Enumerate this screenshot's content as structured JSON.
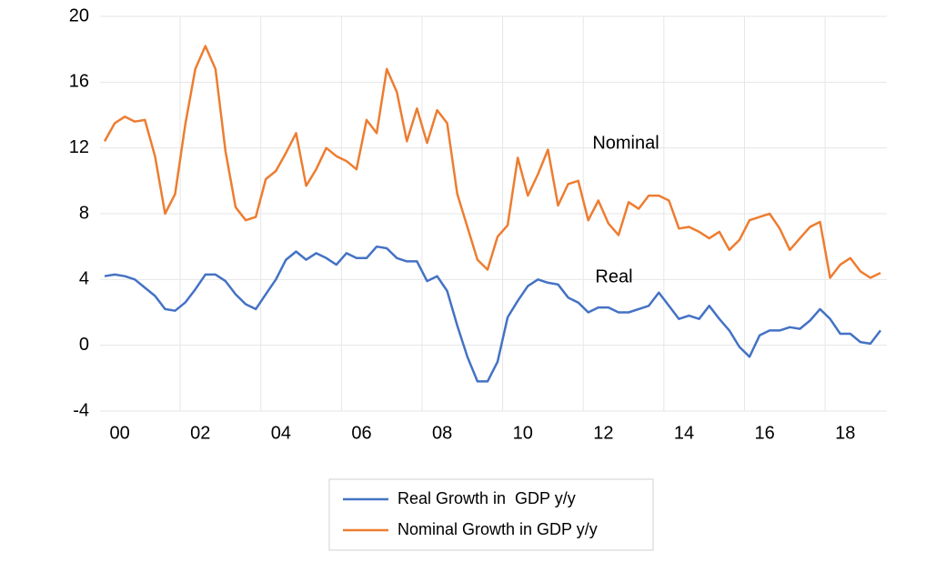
{
  "chart_data": {
    "type": "line",
    "categories": [
      "00",
      null,
      null,
      null,
      null,
      null,
      null,
      null,
      "02",
      null,
      null,
      null,
      null,
      null,
      null,
      null,
      "04",
      null,
      null,
      null,
      null,
      null,
      null,
      null,
      "06",
      null,
      null,
      null,
      null,
      null,
      null,
      null,
      "08",
      null,
      null,
      null,
      null,
      null,
      null,
      null,
      "10",
      null,
      null,
      null,
      null,
      null,
      null,
      null,
      "12",
      null,
      null,
      null,
      null,
      null,
      null,
      null,
      "14",
      null,
      null,
      null,
      null,
      null,
      null,
      null,
      "16",
      null,
      null,
      null,
      null,
      null,
      null,
      null,
      "18",
      null,
      null,
      null,
      null,
      null
    ],
    "series": [
      {
        "name": "Real Growth in  GDP y/y",
        "color": "#4472c4",
        "values": [
          4.2,
          4.3,
          4.2,
          4.0,
          3.5,
          3.0,
          2.2,
          2.1,
          2.6,
          3.4,
          4.3,
          4.3,
          3.9,
          3.1,
          2.5,
          2.2,
          3.1,
          4.0,
          5.2,
          5.7,
          5.2,
          5.6,
          5.3,
          4.9,
          5.6,
          5.3,
          5.3,
          6.0,
          5.9,
          5.3,
          5.1,
          5.1,
          3.9,
          4.2,
          3.3,
          1.2,
          -0.7,
          -2.2,
          -2.2,
          -1.0,
          1.7,
          2.7,
          3.6,
          4.0,
          3.8,
          3.7,
          2.9,
          2.6,
          2.0,
          2.3,
          2.3,
          2.0,
          2.0,
          2.2,
          2.4,
          3.2,
          2.4,
          1.6,
          1.8,
          1.6,
          2.4,
          1.6,
          0.9,
          -0.1,
          -0.7,
          0.6,
          0.9,
          0.9,
          1.1,
          1.0,
          1.5,
          2.2,
          1.6,
          0.7,
          0.7,
          0.2,
          0.1,
          0.9
        ]
      },
      {
        "name": "Nominal Growth in GDP y/y",
        "color": "#ed7d31",
        "values": [
          12.4,
          13.5,
          13.9,
          13.6,
          13.7,
          11.5,
          8.0,
          9.2,
          13.4,
          16.8,
          18.2,
          16.8,
          11.8,
          8.4,
          7.6,
          7.8,
          10.1,
          10.6,
          11.7,
          12.9,
          9.7,
          10.7,
          12.0,
          11.5,
          11.2,
          10.7,
          13.7,
          12.9,
          16.8,
          15.4,
          12.4,
          14.4,
          12.3,
          14.3,
          13.5,
          9.2,
          7.2,
          5.2,
          4.6,
          6.6,
          7.3,
          11.4,
          9.1,
          10.4,
          11.9,
          8.5,
          9.8,
          10.0,
          7.6,
          8.8,
          7.4,
          6.7,
          8.7,
          8.3,
          9.1,
          9.1,
          8.8,
          7.1,
          7.2,
          6.9,
          6.5,
          6.9,
          5.8,
          6.4,
          7.6,
          7.8,
          8.0,
          7.1,
          5.8,
          6.5,
          7.2,
          7.5,
          4.1,
          4.9,
          5.3,
          4.5,
          4.1,
          4.4
        ]
      }
    ],
    "annotations": [
      "Nominal",
      "Real"
    ],
    "ylim": [
      -4,
      20
    ],
    "yticks": [
      -4,
      0,
      4,
      8,
      12,
      16,
      20
    ],
    "grid": true,
    "legend": "bottom"
  }
}
